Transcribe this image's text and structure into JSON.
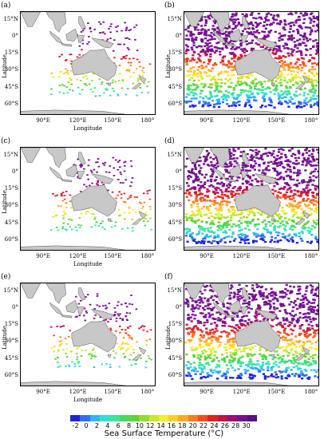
{
  "panels": [
    {
      "id": "a",
      "label": "(a)",
      "coverage": "sparse",
      "show_y_axis_title": true,
      "show_x_axis_title": true
    },
    {
      "id": "b",
      "label": "(b)",
      "coverage": "dense",
      "show_y_axis_title": true,
      "show_x_axis_title": false
    },
    {
      "id": "c",
      "label": "(c)",
      "coverage": "sparse",
      "show_y_axis_title": true,
      "show_x_axis_title": true
    },
    {
      "id": "d",
      "label": "(d)",
      "coverage": "dense",
      "show_y_axis_title": false,
      "show_x_axis_title": false
    },
    {
      "id": "e",
      "label": "(e)",
      "coverage": "sparse",
      "show_y_axis_title": true,
      "show_x_axis_title": true
    },
    {
      "id": "f",
      "label": "(f)",
      "coverage": "dense",
      "show_y_axis_title": true,
      "show_x_axis_title": false
    }
  ],
  "axes": {
    "ylabel": "Latitude",
    "xlabel": "Longitude",
    "lat_ticks": [
      "15°N",
      "0°",
      "15°S",
      "30°S",
      "45°S",
      "60°S"
    ],
    "lat_values": [
      15,
      0,
      -15,
      -30,
      -45,
      -60
    ],
    "lon_ticks": [
      "90°E",
      "120°E",
      "150°E",
      "180°"
    ],
    "lon_values": [
      90,
      120,
      150,
      180
    ],
    "lat_range": [
      -70,
      22
    ],
    "lon_range": [
      70,
      187
    ]
  },
  "colorbar": {
    "title": "Sea Surface Temperature (°C)",
    "tick_labels": [
      "-2",
      "0",
      "2",
      "4",
      "6",
      "8",
      "10",
      "12",
      "14",
      "16",
      "18",
      "20",
      "22",
      "24",
      "26",
      "28",
      "30"
    ],
    "tick_values": [
      -2,
      0,
      2,
      4,
      6,
      8,
      10,
      12,
      14,
      16,
      18,
      20,
      22,
      24,
      26,
      28,
      30
    ],
    "range": [
      -3,
      32
    ],
    "colors": [
      "#1e24d8",
      "#2f6ff5",
      "#32b4f2",
      "#34dcd4",
      "#3fe39a",
      "#46d960",
      "#5dd23a",
      "#93dc2f",
      "#c8e82d",
      "#f1ee30",
      "#f9cf29",
      "#fbaa25",
      "#fb7c20",
      "#f54b1d",
      "#e2231f",
      "#c41443",
      "#9a0f74",
      "#73128f",
      "#571087"
    ]
  },
  "land_color": "#c8c8c8"
}
